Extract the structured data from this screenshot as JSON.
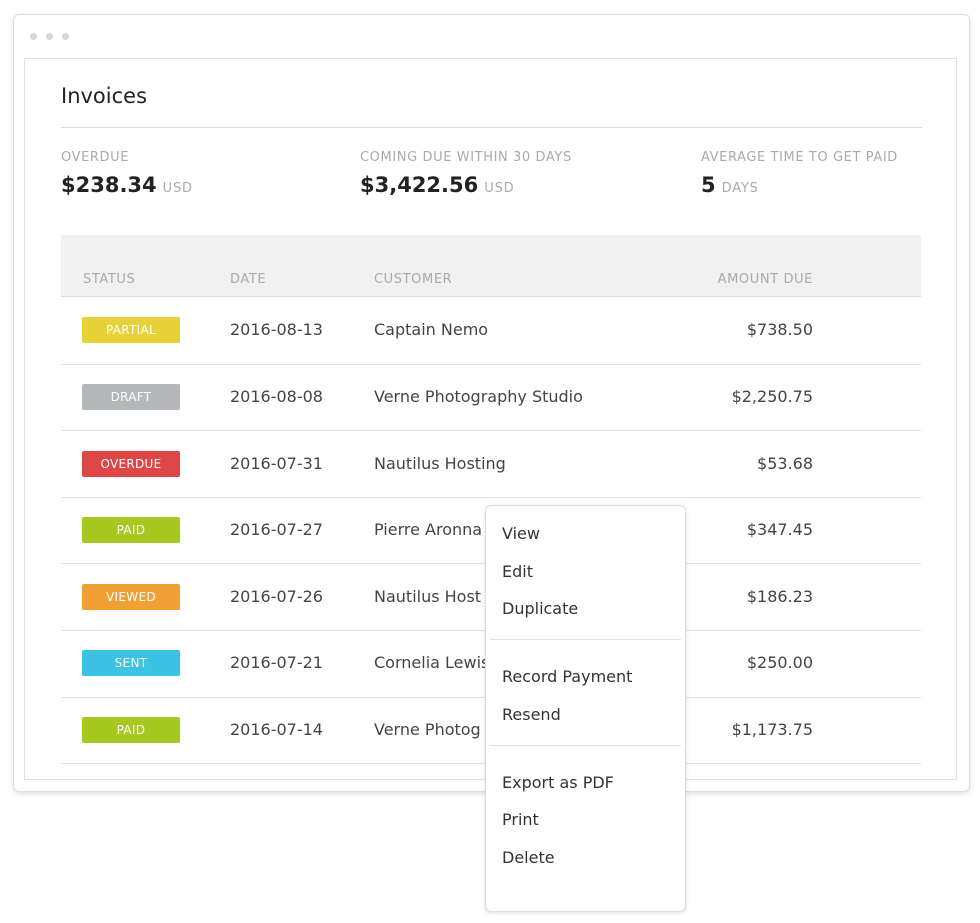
{
  "header": {
    "title": "Invoices"
  },
  "stats": [
    {
      "label": "OVERDUE",
      "value": "$238.34",
      "unit": "USD"
    },
    {
      "label": "COMING DUE WITHIN 30 DAYS",
      "value": "$3,422.56",
      "unit": "USD"
    },
    {
      "label": "AVERAGE TIME TO GET PAID",
      "value": "5",
      "unit": "DAYS"
    }
  ],
  "table": {
    "columns": [
      "STATUS",
      "DATE",
      "CUSTOMER",
      "AMOUNT DUE"
    ],
    "rows": [
      {
        "status": "PARTIAL",
        "color": "#e6d236",
        "date": "2016-08-13",
        "customer": "Captain Nemo",
        "amount": "$738.50"
      },
      {
        "status": "DRAFT",
        "color": "#b4b8ba",
        "date": "2016-08-08",
        "customer": "Verne Photography Studio",
        "amount": "$2,250.75"
      },
      {
        "status": "OVERDUE",
        "color": "#df4747",
        "date": "2016-07-31",
        "customer": "Nautilus Hosting",
        "amount": "$53.68"
      },
      {
        "status": "PAID",
        "color": "#a6c91f",
        "date": "2016-07-27",
        "customer": "Pierre Aronna",
        "amount": "$347.45"
      },
      {
        "status": "VIEWED",
        "color": "#f1a035",
        "date": "2016-07-26",
        "customer": "Nautilus Host",
        "amount": "$186.23"
      },
      {
        "status": "SENT",
        "color": "#3cc3e3",
        "date": "2016-07-21",
        "customer": "Cornelia Lewis",
        "amount": "$250.00"
      },
      {
        "status": "PAID",
        "color": "#a6c91f",
        "date": "2016-07-14",
        "customer": "Verne Photog",
        "amount": "$1,173.75"
      }
    ]
  },
  "menu": {
    "groups": [
      [
        "View",
        "Edit",
        "Duplicate"
      ],
      [
        "Record Payment",
        "Resend"
      ],
      [
        "Export as PDF",
        "Print",
        "Delete"
      ]
    ]
  }
}
